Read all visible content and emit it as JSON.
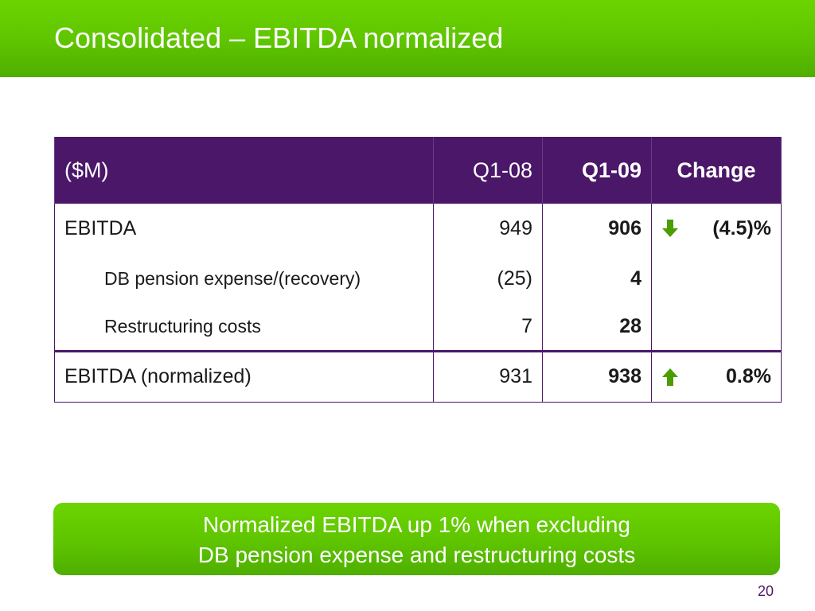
{
  "slide": {
    "title": "Consolidated – EBITDA normalized",
    "page_number": "20"
  },
  "table": {
    "headers": {
      "label": "($M)",
      "q108": "Q1-08",
      "q109": "Q1-09",
      "change": "Change"
    },
    "rows": [
      {
        "label": "EBITDA",
        "q108": "949",
        "q109": "906",
        "change": "(4.5)%",
        "trend_icon": "arrow-down-icon"
      },
      {
        "label": "DB pension expense/(recovery)",
        "q108": "(25)",
        "q109": "4",
        "change": ""
      },
      {
        "label": "Restructuring costs",
        "q108": "7",
        "q109": "28",
        "change": ""
      },
      {
        "label": "EBITDA (normalized)",
        "q108": "931",
        "q109": "938",
        "change": "0.8%",
        "trend_icon": "arrow-up-icon"
      }
    ]
  },
  "callout": {
    "line1": "Normalized EBITDA up 1% when excluding",
    "line2": "DB pension expense and restructuring costs"
  },
  "colors": {
    "brand_green": "#5ec400",
    "brand_purple": "#4b1768"
  }
}
